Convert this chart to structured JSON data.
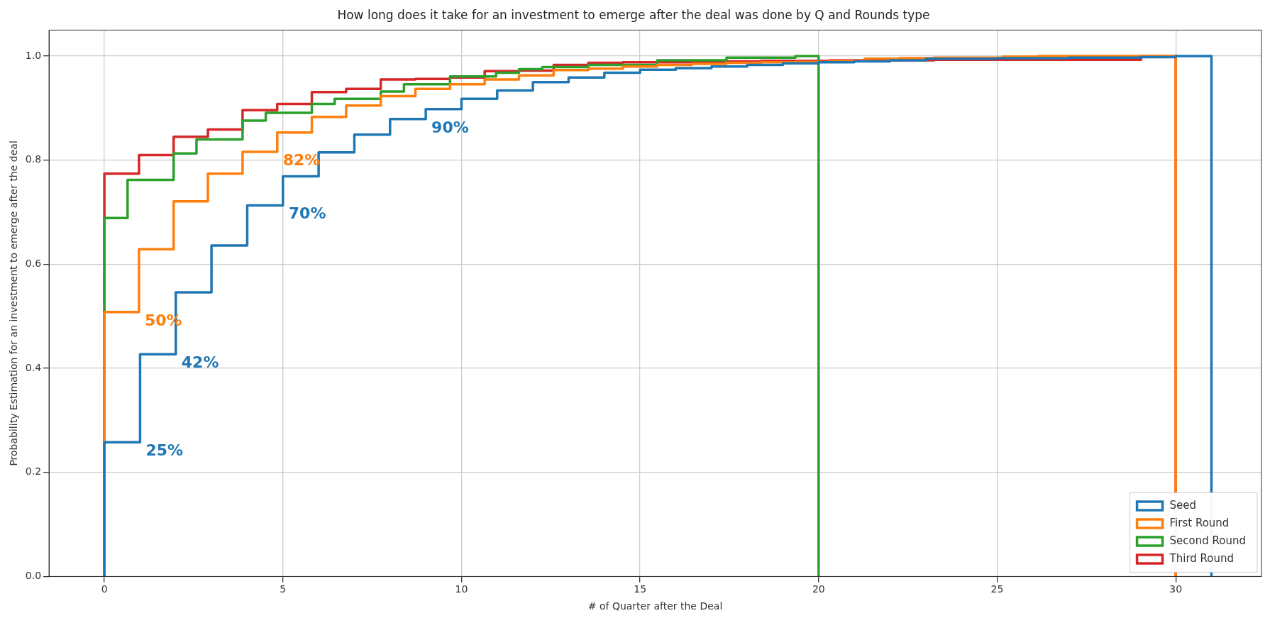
{
  "chart_data": {
    "type": "step",
    "title": "How long does it take for an investment to emerge after the deal was done by Q and Rounds type",
    "xlabel": "# of Quarter after the Deal",
    "ylabel": "Probability Estimation for an investment to emerge after the deal",
    "xlim": [
      -1.55,
      32.4
    ],
    "xticks": [
      0,
      5,
      10,
      15,
      20,
      25,
      30
    ],
    "ylim": [
      0,
      1.05
    ],
    "yticks": [
      {
        "value": 0,
        "label": "0.0"
      },
      0.2,
      0.4,
      0.6,
      0.8,
      {
        "value": 1,
        "label": "1.0"
      }
    ],
    "grid": true,
    "legend": "bottom right",
    "marker": "none",
    "line_style": "solid",
    "series": [
      {
        "name": "Seed",
        "color": "#1f77b4",
        "x": [
          0,
          0,
          1,
          2,
          3,
          4,
          5,
          6,
          7,
          8,
          9,
          10,
          11,
          12,
          13,
          14,
          15,
          16,
          17,
          18,
          19,
          20,
          21,
          22,
          23,
          24,
          25,
          26,
          27,
          28,
          29,
          30,
          31
        ],
        "values": [
          0,
          0.258,
          0.427,
          0.546,
          0.636,
          0.713,
          0.769,
          0.815,
          0.849,
          0.879,
          0.898,
          0.918,
          0.934,
          0.95,
          0.959,
          0.968,
          0.974,
          0.977,
          0.98,
          0.983,
          0.986,
          0.988,
          0.99,
          0.992,
          0.995,
          0.995,
          0.996,
          0.996,
          0.997,
          0.997,
          0.998,
          1.0,
          0
        ]
      },
      {
        "name": "First Round",
        "color": "#ff7f0e",
        "x": [
          0,
          0,
          0.97,
          1.94,
          2.9,
          3.87,
          4.84,
          5.81,
          6.77,
          7.74,
          8.71,
          9.68,
          10.65,
          11.61,
          12.58,
          13.55,
          14.52,
          15.48,
          16.45,
          17.42,
          18.39,
          19.35,
          20.32,
          21.29,
          22.26,
          23.23,
          24.19,
          25.16,
          26.13,
          27.1,
          28.06,
          29.03,
          30
        ],
        "values": [
          0,
          0.508,
          0.629,
          0.721,
          0.774,
          0.816,
          0.853,
          0.883,
          0.905,
          0.923,
          0.937,
          0.946,
          0.955,
          0.963,
          0.973,
          0.976,
          0.98,
          0.983,
          0.985,
          0.987,
          0.988,
          0.989,
          0.991,
          0.995,
          0.996,
          0.997,
          0.997,
          0.999,
          1.0,
          1.0,
          1.0,
          1.0,
          0
        ]
      },
      {
        "name": "Second Round",
        "color": "#2ca02c",
        "x": [
          0,
          0,
          0.65,
          1.29,
          1.94,
          2.58,
          3.23,
          3.87,
          4.52,
          5.16,
          5.81,
          6.45,
          7.1,
          7.74,
          8.39,
          9.03,
          9.68,
          10.32,
          10.97,
          11.61,
          12.26,
          12.9,
          13.55,
          14.19,
          14.84,
          15.48,
          16.13,
          16.77,
          17.42,
          18.06,
          18.71,
          19.35,
          20
        ],
        "values": [
          0,
          0.689,
          0.762,
          0.762,
          0.813,
          0.84,
          0.84,
          0.876,
          0.891,
          0.891,
          0.908,
          0.918,
          0.918,
          0.932,
          0.946,
          0.946,
          0.961,
          0.961,
          0.968,
          0.975,
          0.979,
          0.979,
          0.983,
          0.983,
          0.983,
          0.992,
          0.992,
          0.992,
          0.997,
          0.997,
          0.997,
          1.0,
          0
        ]
      },
      {
        "name": "Third Round",
        "color": "#d62728",
        "x": [
          0,
          0,
          0.97,
          1.94,
          2.9,
          3.87,
          4.84,
          5.81,
          6.77,
          7.74,
          8.71,
          9.68,
          10.65,
          11.61,
          12.58,
          13.55,
          14.52,
          15.48,
          16.45,
          17.42,
          18.39,
          19.35,
          20.32,
          21.29,
          22.26,
          23.23,
          24.19,
          25.16,
          26.13,
          27.1,
          28.06,
          29.03,
          30
        ],
        "values": [
          0,
          0.774,
          0.81,
          0.845,
          0.859,
          0.896,
          0.908,
          0.931,
          0.937,
          0.955,
          0.956,
          0.959,
          0.971,
          0.972,
          0.983,
          0.987,
          0.988,
          0.988,
          0.989,
          0.99,
          0.991,
          0.991,
          0.992,
          0.992,
          0.992,
          0.993,
          0.993,
          0.993,
          0.993,
          0.993,
          0.993,
          1.0,
          0
        ]
      }
    ],
    "annotations": [
      {
        "text": "25%",
        "x": 1,
        "y": 0.258
      },
      {
        "text": "42%",
        "x": 2,
        "y": 0.427
      },
      {
        "text": "50%",
        "x": 0.97,
        "y": 0.508
      },
      {
        "text": "70%",
        "x": 5,
        "y": 0.713
      },
      {
        "text": "82%",
        "x": 4.84,
        "y": 0.816
      },
      {
        "text": "90%",
        "x": 9,
        "y": 0.879
      }
    ]
  }
}
